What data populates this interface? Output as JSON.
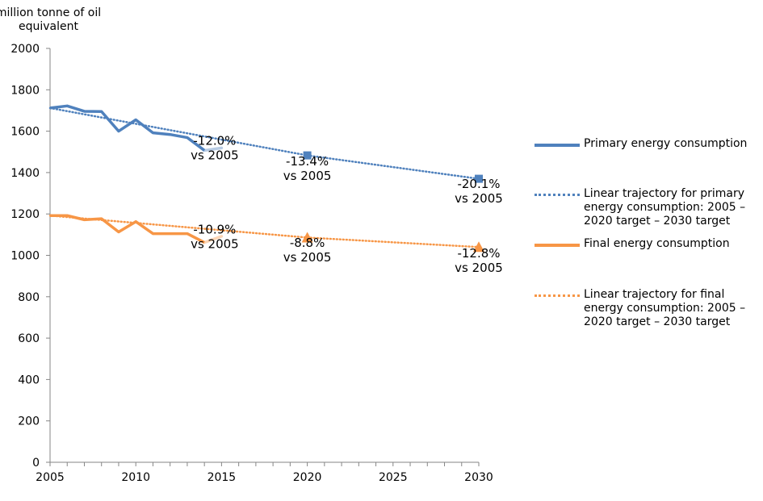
{
  "chart_data": {
    "type": "line",
    "ylabel": "million  tonne of oil equivalent",
    "xlim": [
      2005,
      2030
    ],
    "ylim": [
      0,
      2000
    ],
    "x_ticks": [
      "2005",
      "2010",
      "2015",
      "2020",
      "2025",
      "2030"
    ],
    "y_ticks": [
      "0",
      "200",
      "400",
      "600",
      "800",
      "1000",
      "1200",
      "1400",
      "1600",
      "1800",
      "2000"
    ],
    "grid": false,
    "legend_position": "right",
    "series": [
      {
        "name": "Primary energy consumption",
        "style": "solid",
        "color": "#4F81BD",
        "x": [
          2005,
          2006,
          2007,
          2008,
          2009,
          2010,
          2011,
          2012,
          2013,
          2014
        ],
        "y": [
          1712,
          1722,
          1696,
          1695,
          1600,
          1655,
          1592,
          1584,
          1569,
          1507
        ],
        "estimate": {
          "x": [
            2014,
            2015
          ],
          "y": [
            1507,
            1519
          ],
          "color": "#B8CCE4"
        }
      },
      {
        "name": "Linear trajectory for primary energy consumption: 2005 – 2020 target – 2030 target",
        "style": "dotted",
        "color": "#4F81BD",
        "x": [
          2005,
          2020,
          2030
        ],
        "y": [
          1712,
          1483,
          1370
        ],
        "markers": {
          "shape": "square",
          "x": [
            2020,
            2030
          ],
          "y": [
            1483,
            1370
          ]
        }
      },
      {
        "name": "Final energy consumption",
        "style": "solid",
        "color": "#F79646",
        "x": [
          2005,
          2006,
          2007,
          2008,
          2009,
          2010,
          2011,
          2012,
          2013,
          2014
        ],
        "y": [
          1192,
          1192,
          1172,
          1177,
          1113,
          1163,
          1105,
          1105,
          1105,
          1062
        ],
        "estimate": {
          "x": [
            2014,
            2015
          ],
          "y": [
            1062,
            1092
          ],
          "color": "#FCD5B5"
        }
      },
      {
        "name": "Linear trajectory for final energy consumption: 2005 – 2020 target – 2030 target",
        "style": "dotted",
        "color": "#F79646",
        "x": [
          2005,
          2020,
          2030
        ],
        "y": [
          1192,
          1086,
          1040
        ],
        "markers": {
          "shape": "triangle",
          "x": [
            2020,
            2030
          ],
          "y": [
            1086,
            1040
          ]
        }
      }
    ],
    "annotations": [
      {
        "line1": "-12.0%",
        "line2": "vs 2005",
        "x": 2014.6,
        "y": 1535
      },
      {
        "line1": "-13.4%",
        "line2": "vs 2005",
        "x": 2020,
        "y": 1435
      },
      {
        "line1": "-20.1%",
        "line2": "vs 2005",
        "x": 2030,
        "y": 1325
      },
      {
        "line1": "-10.9%",
        "line2": "vs 2005",
        "x": 2014.6,
        "y": 1105
      },
      {
        "line1": "-8.8%",
        "line2": "vs 2005",
        "x": 2020,
        "y": 1040
      },
      {
        "line1": "-12.8%",
        "line2": "vs 2005",
        "x": 2030,
        "y": 990
      }
    ]
  }
}
